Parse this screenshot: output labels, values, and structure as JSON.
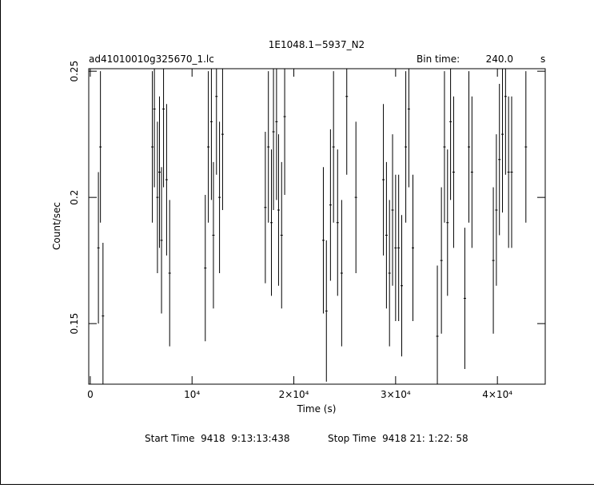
{
  "chart_data": {
    "type": "errorbar",
    "title": "1E1048.1−5937_N2",
    "file_label": "ad41010010g325670_1.lc",
    "bin_label": "Bin time:",
    "bin_value": "240.0",
    "bin_unit": "s",
    "xlabel": "Time (s)",
    "ylabel": "Count/sec",
    "start_time": "Start Time  9418  9:13:13:438",
    "stop_time": "Stop Time  9418 21: 1:22: 58",
    "color": "#000000",
    "xlim": [
      -150,
      44700
    ],
    "ylim": [
      0.126,
      0.251
    ],
    "xticks": [
      0,
      {
        "value": 10000,
        "label": "10⁴"
      },
      {
        "value": 20000,
        "label": "2×10⁴"
      },
      {
        "value": 30000,
        "label": "3×10⁴"
      },
      {
        "value": 40000,
        "label": "4×10⁴"
      }
    ],
    "yticks": [
      0.15,
      0.2,
      0.25
    ],
    "series": [
      {
        "x": [
          800,
          1000,
          1250,
          6100,
          6300,
          6600,
          6800,
          7000,
          7200,
          7500,
          7800,
          11300,
          11600,
          11900,
          12100,
          12400,
          12700,
          13000,
          17200,
          17500,
          17800,
          18000,
          18300,
          18500,
          18800,
          19100,
          22900,
          23200,
          23600,
          23900,
          24300,
          24700,
          25200,
          26100,
          28800,
          29100,
          29400,
          29700,
          30000,
          30300,
          30600,
          31000,
          31300,
          31700,
          34100,
          34500,
          34800,
          35100,
          35400,
          35700,
          36800,
          37200,
          37500,
          39600,
          39900,
          40200,
          40500,
          40800,
          41100,
          41400,
          42800
        ],
        "values": [
          0.18,
          0.22,
          0.153,
          0.22,
          0.235,
          0.2,
          0.21,
          0.183,
          0.235,
          0.207,
          0.17,
          0.172,
          0.22,
          0.23,
          0.185,
          0.24,
          0.2,
          0.225,
          0.196,
          0.22,
          0.19,
          0.226,
          0.23,
          0.195,
          0.185,
          0.232,
          0.183,
          0.155,
          0.197,
          0.22,
          0.19,
          0.17,
          0.24,
          0.2,
          0.207,
          0.185,
          0.17,
          0.195,
          0.18,
          0.18,
          0.165,
          0.22,
          0.235,
          0.18,
          0.145,
          0.175,
          0.22,
          0.19,
          0.23,
          0.21,
          0.16,
          0.22,
          0.21,
          0.175,
          0.195,
          0.215,
          0.225,
          0.24,
          0.21,
          0.21,
          0.22
        ],
        "errors": [
          0.03,
          0.03,
          0.029,
          0.03,
          0.031,
          0.03,
          0.03,
          0.029,
          0.031,
          0.03,
          0.029,
          0.029,
          0.03,
          0.031,
          0.029,
          0.031,
          0.03,
          0.03,
          0.03,
          0.03,
          0.029,
          0.031,
          0.031,
          0.03,
          0.029,
          0.031,
          0.029,
          0.028,
          0.03,
          0.03,
          0.029,
          0.029,
          0.031,
          0.03,
          0.03,
          0.029,
          0.029,
          0.03,
          0.029,
          0.029,
          0.028,
          0.03,
          0.031,
          0.029,
          0.028,
          0.029,
          0.03,
          0.029,
          0.031,
          0.03,
          0.028,
          0.03,
          0.03,
          0.029,
          0.03,
          0.03,
          0.031,
          0.031,
          0.03,
          0.03,
          0.03
        ]
      }
    ]
  }
}
